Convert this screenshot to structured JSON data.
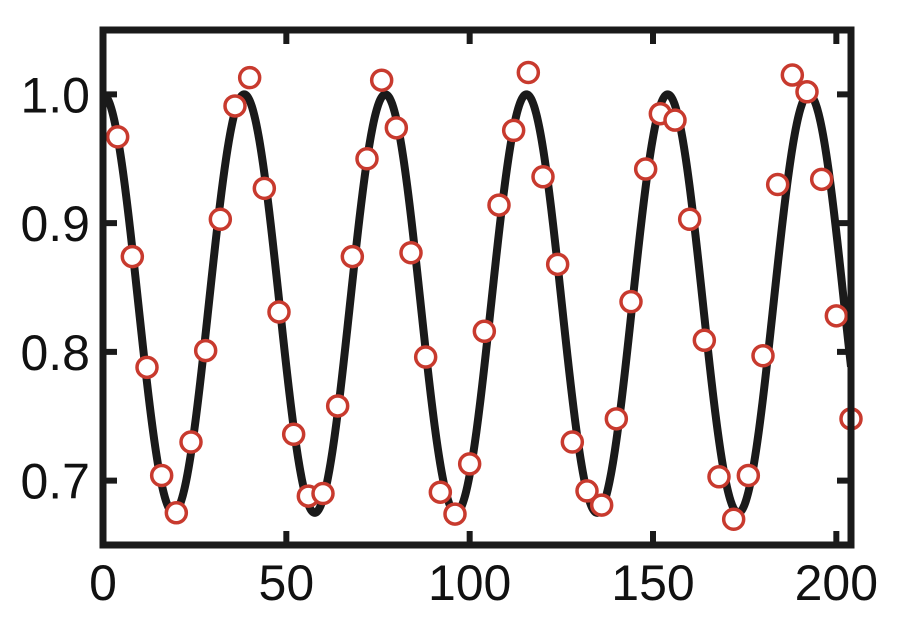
{
  "chart_data": {
    "type": "line",
    "title": "",
    "xlabel": "",
    "ylabel": "",
    "xlim": [
      0,
      204
    ],
    "ylim": [
      0.65,
      1.05
    ],
    "grid": false,
    "legend": "none",
    "x_ticks": [
      0,
      50,
      100,
      150,
      200
    ],
    "x_tick_labels": [
      "0",
      "50",
      "100",
      "150",
      "200"
    ],
    "y_ticks": [
      0.7,
      0.8,
      0.9,
      1.0
    ],
    "y_tick_labels": [
      "0.7",
      "0.8",
      "0.9",
      "1.0"
    ],
    "colors": {
      "fit_line": "#1a1a1a",
      "markers": "#c83a2e",
      "axes": "#1a1a1a"
    },
    "series": [
      {
        "kind": "fit",
        "style": "line",
        "model": {
          "offset": 0.8375,
          "amplitude": 0.1625,
          "period": 38.5
        }
      },
      {
        "kind": "measured",
        "style": "markers",
        "x": [
          4,
          8,
          12,
          16,
          20,
          24,
          28,
          32,
          36,
          40,
          44,
          48,
          52,
          56,
          60,
          64,
          68,
          72,
          76,
          80,
          84,
          88,
          92,
          96,
          100,
          104,
          108,
          112,
          116,
          120,
          124,
          128,
          132,
          136,
          140,
          144,
          148,
          152,
          156,
          160,
          164,
          168,
          172,
          176,
          180,
          184,
          188,
          192,
          196,
          200,
          204
        ],
        "y": [
          0.967,
          0.874,
          0.788,
          0.704,
          0.675,
          0.73,
          0.801,
          0.903,
          0.991,
          1.013,
          0.927,
          0.831,
          0.736,
          0.688,
          0.69,
          0.758,
          0.874,
          0.95,
          1.011,
          0.974,
          0.877,
          0.796,
          0.691,
          0.674,
          0.713,
          0.816,
          0.914,
          0.972,
          1.017,
          0.936,
          0.868,
          0.73,
          0.692,
          0.681,
          0.748,
          0.839,
          0.942,
          0.985,
          0.98,
          0.903,
          0.809,
          0.703,
          0.67,
          0.704,
          0.797,
          0.93,
          1.015,
          1.002,
          0.934,
          0.828,
          0.748
        ]
      }
    ]
  }
}
